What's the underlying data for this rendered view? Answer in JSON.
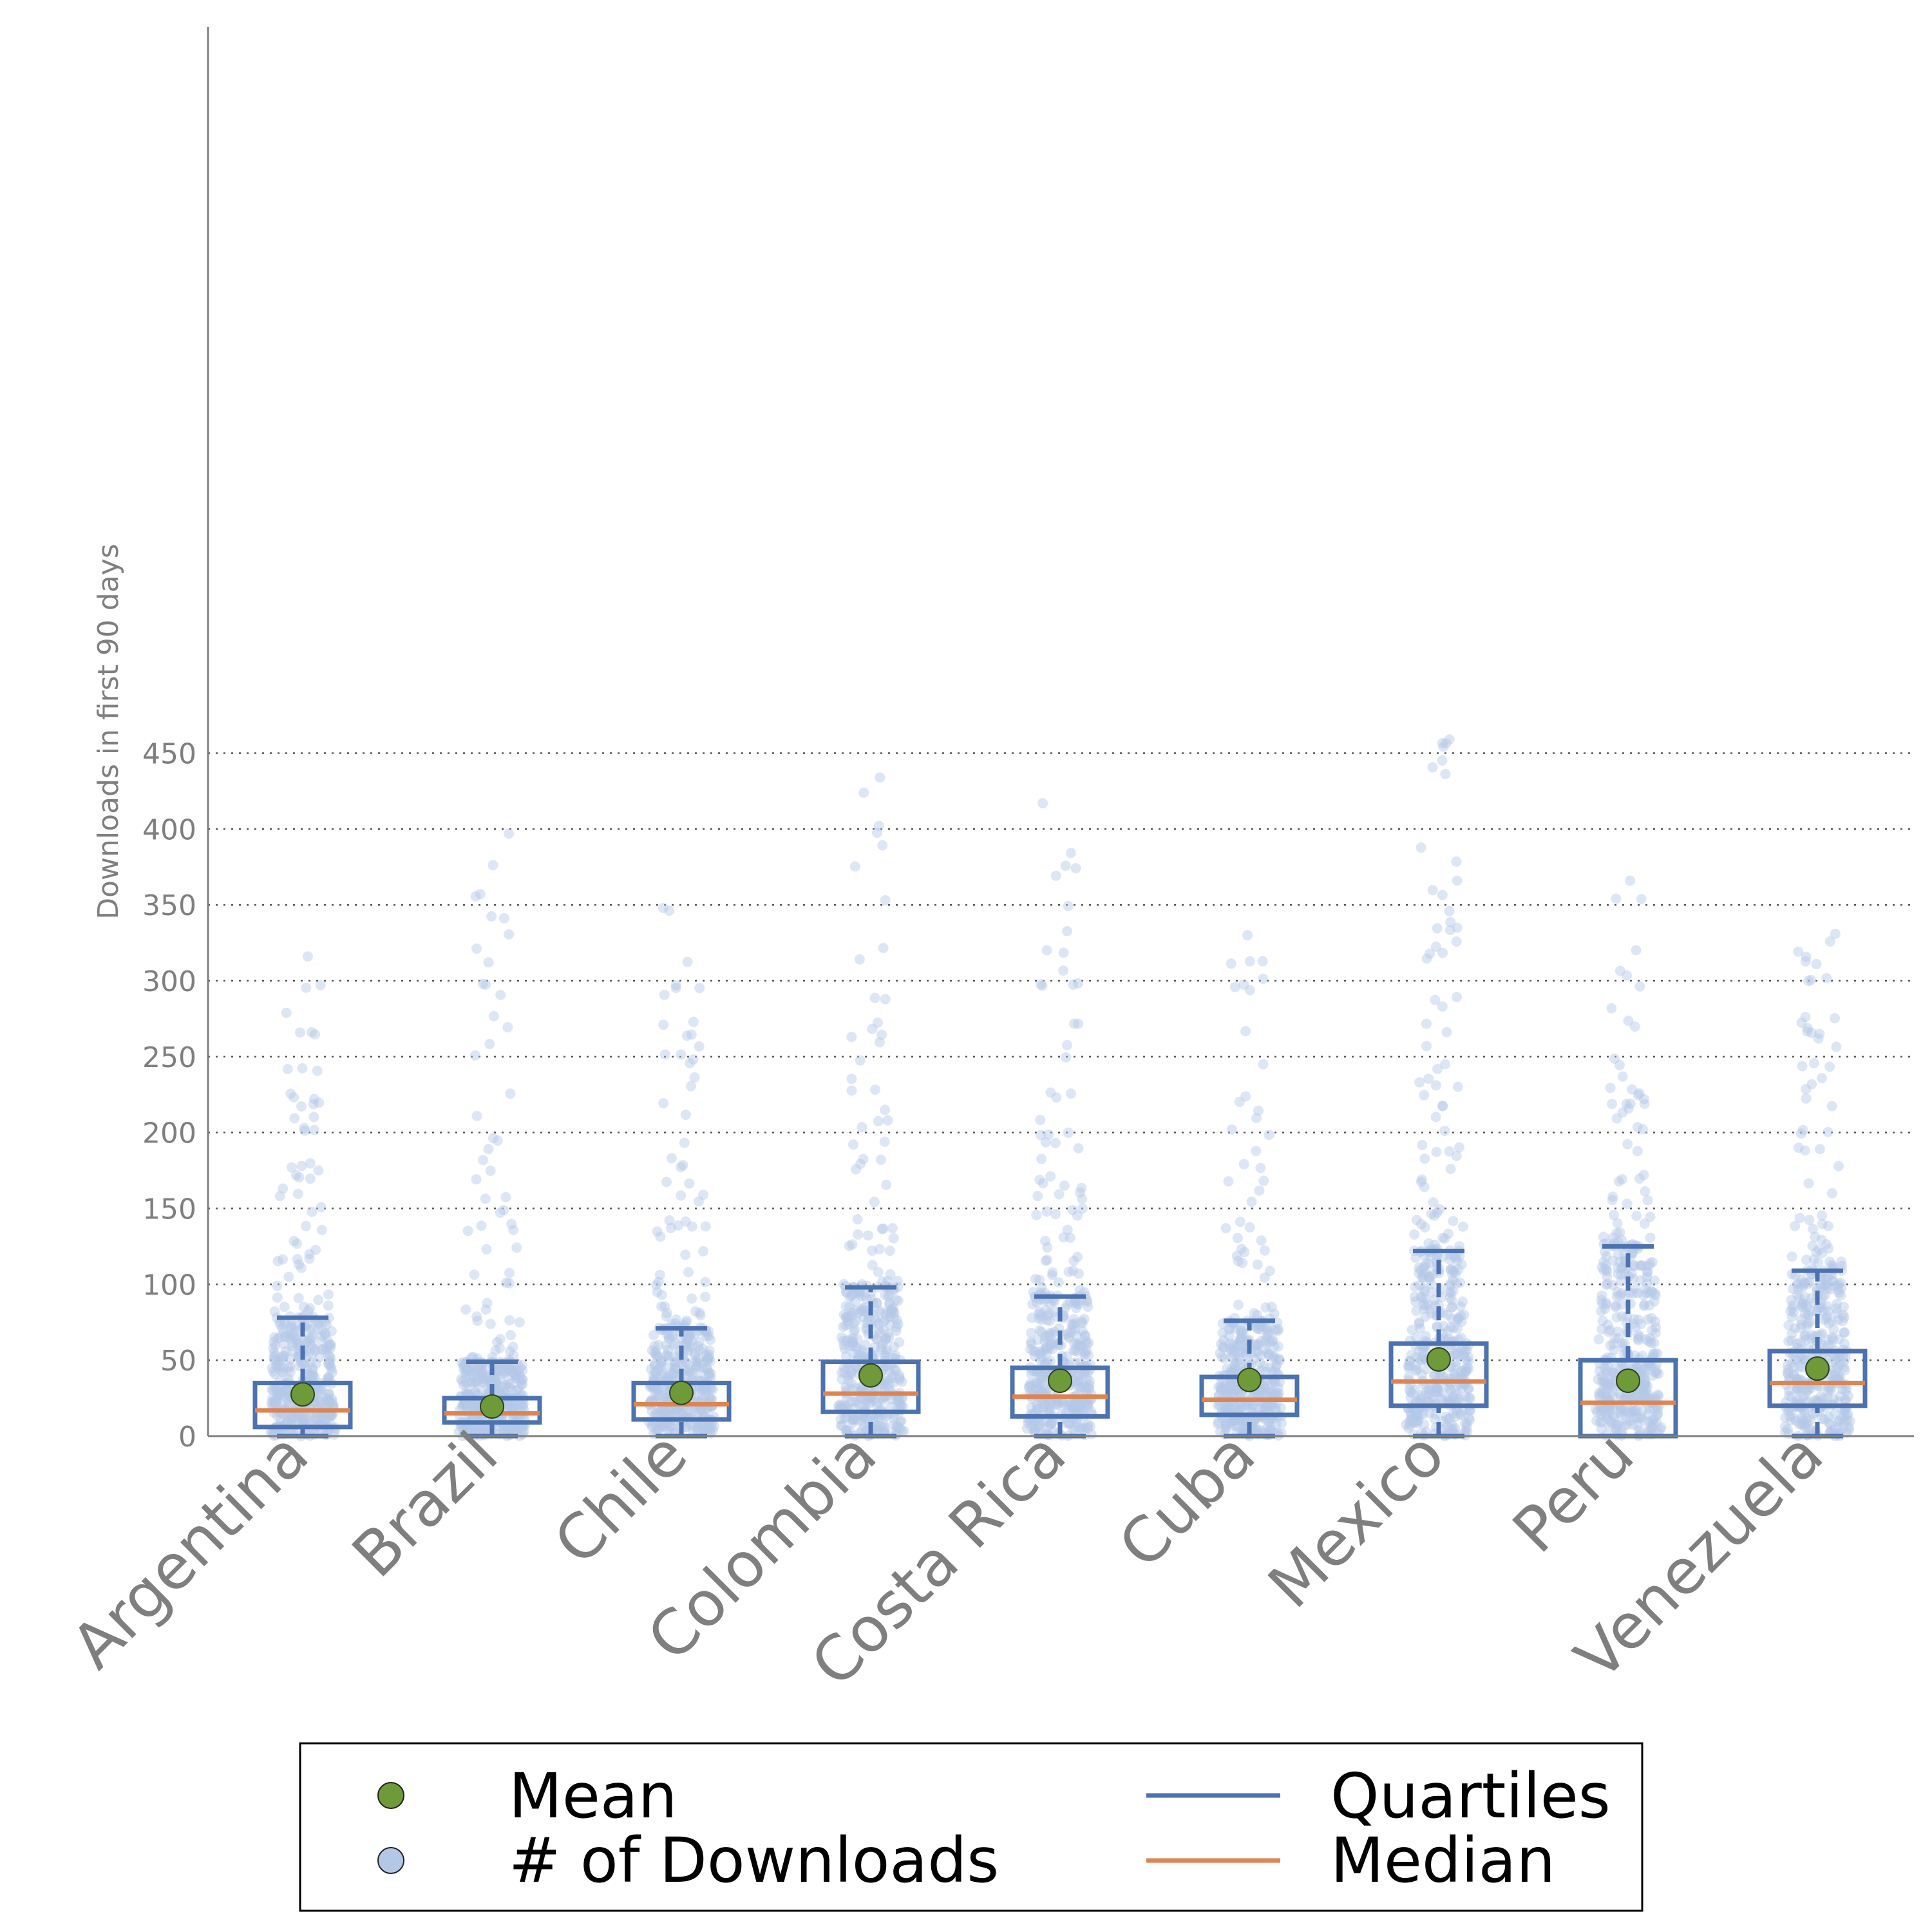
{
  "chart_data": {
    "type": "box",
    "title": "",
    "xlabel": "",
    "ylabel": "Downloads in first 90 days",
    "ylim": [
      0,
      465
    ],
    "yticks": [
      0,
      50,
      100,
      150,
      200,
      250,
      300,
      350,
      400,
      450
    ],
    "grid": "horizontal dotted",
    "categories": [
      "Argentina",
      "Brazil",
      "Chile",
      "Colombia",
      "Costa Rica",
      "Cuba",
      "Mexico",
      "Peru",
      "Venezuela"
    ],
    "boxes": [
      {
        "name": "Argentina",
        "min": 0,
        "q1": 6,
        "median": 17,
        "q3": 35,
        "whisker_high": 78,
        "mean": 27.5,
        "max_outlier": 316
      },
      {
        "name": "Brazil",
        "min": 0,
        "q1": 9,
        "median": 15,
        "q3": 25,
        "whisker_high": 49,
        "mean": 19.5,
        "max_outlier": 397
      },
      {
        "name": "Chile",
        "min": 0,
        "q1": 11,
        "median": 21,
        "q3": 35,
        "whisker_high": 71,
        "mean": 28.5,
        "max_outlier": 348
      },
      {
        "name": "Colombia",
        "min": 0,
        "q1": 16,
        "median": 28,
        "q3": 49,
        "whisker_high": 98,
        "mean": 40,
        "max_outlier": 434
      },
      {
        "name": "Costa Rica",
        "min": 0,
        "q1": 13,
        "median": 26,
        "q3": 45,
        "whisker_high": 92,
        "mean": 36.5,
        "max_outlier": 417
      },
      {
        "name": "Cuba",
        "min": 0,
        "q1": 14,
        "median": 24,
        "q3": 39,
        "whisker_high": 76,
        "mean": 37,
        "max_outlier": 330
      },
      {
        "name": "Mexico",
        "min": 0,
        "q1": 20,
        "median": 36,
        "q3": 61,
        "whisker_high": 122,
        "mean": 50.5,
        "max_outlier": 459
      },
      {
        "name": "Peru",
        "min": 0,
        "q1": 0,
        "median": 22,
        "q3": 50,
        "whisker_high": 125,
        "mean": 36.5,
        "max_outlier": 366
      },
      {
        "name": "Venezuela",
        "min": 0,
        "q1": 20,
        "median": 35,
        "q3": 56,
        "whisker_high": 109,
        "mean": 44.5,
        "max_outlier": 331
      }
    ],
    "legend": {
      "position": "bottom-center",
      "entries": [
        {
          "label": "Mean",
          "kind": "marker"
        },
        {
          "label": "# of Downloads",
          "kind": "marker"
        },
        {
          "label": "Quartiles",
          "kind": "line"
        },
        {
          "label": "Median",
          "kind": "line"
        }
      ]
    },
    "colors": {
      "mean": "#6e9a3a",
      "points": "#b4c7e7",
      "quartiles": "#4c72b0",
      "median": "#dd8452",
      "axis": "#7f7f7f",
      "grid": "#555555"
    }
  }
}
